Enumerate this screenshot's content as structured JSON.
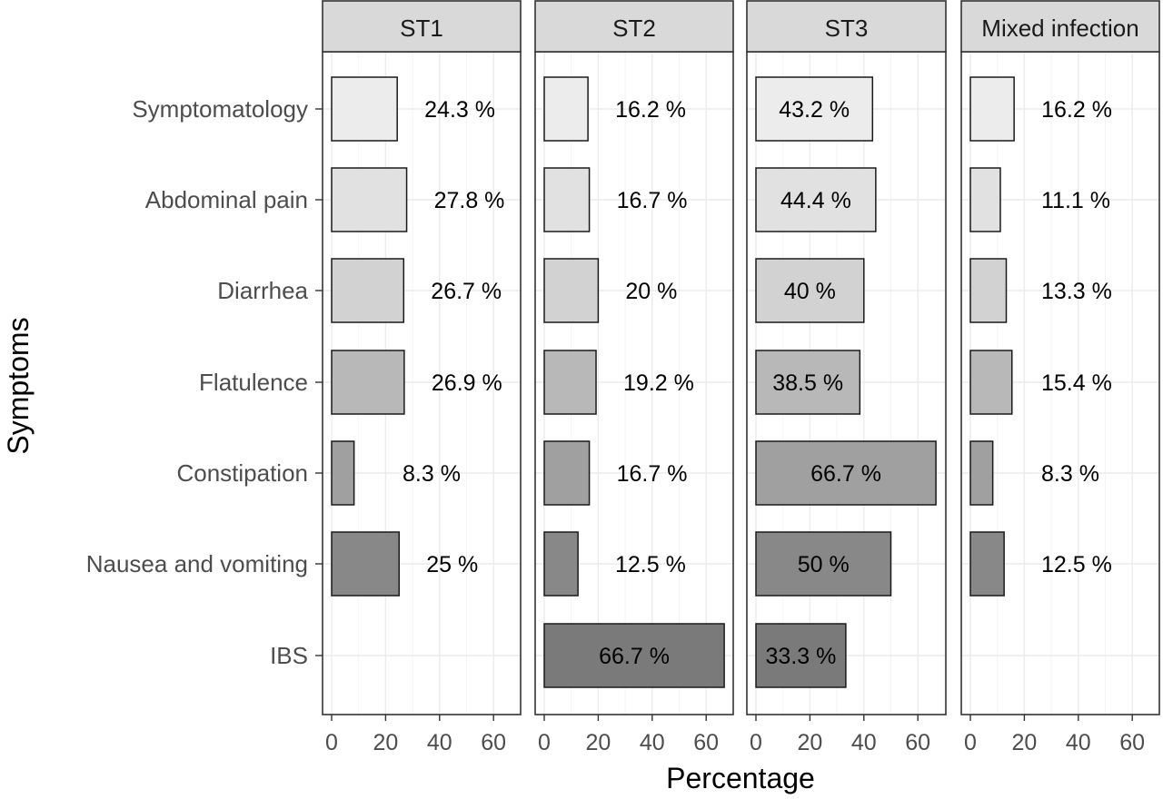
{
  "chart_data": {
    "type": "bar",
    "orientation": "horizontal",
    "xlabel": "Percentage",
    "ylabel": "Symptoms",
    "xlim": [
      0,
      70
    ],
    "xticks": [
      0,
      20,
      40,
      60
    ],
    "categories": [
      "Symptomatology",
      "Abdominal pain",
      "Diarrhea",
      "Flatulence",
      "Constipation",
      "Nausea and vomiting",
      "IBS"
    ],
    "fill_colors": [
      "#ececec",
      "#e1e1e1",
      "#d2d2d2",
      "#b8b8b8",
      "#a0a0a0",
      "#888888",
      "#7a7a7a"
    ],
    "grid": true,
    "panels": [
      {
        "name": "ST1",
        "values": [
          24.3,
          27.8,
          26.7,
          26.9,
          8.3,
          25,
          null
        ],
        "labels": [
          "24.3 %",
          "27.8 %",
          "26.7 %",
          "26.9 %",
          "8.3 %",
          "25 %",
          ""
        ]
      },
      {
        "name": "ST2",
        "values": [
          16.2,
          16.7,
          20,
          19.2,
          16.7,
          12.5,
          66.7
        ],
        "labels": [
          "16.2 %",
          "16.7 %",
          "20 %",
          "19.2 %",
          "16.7 %",
          "12.5 %",
          "66.7 %"
        ]
      },
      {
        "name": "ST3",
        "values": [
          43.2,
          44.4,
          40,
          38.5,
          66.7,
          50,
          33.3
        ],
        "labels": [
          "43.2 %",
          "44.4 %",
          "40 %",
          "38.5 %",
          "66.7 %",
          "50 %",
          "33.3 %"
        ]
      },
      {
        "name": "Mixed infection",
        "values": [
          16.2,
          11.1,
          13.3,
          15.4,
          8.3,
          12.5,
          null
        ],
        "labels": [
          "16.2 %",
          "11.1 %",
          "13.3 %",
          "15.4 %",
          "8.3 %",
          "12.5 %",
          ""
        ]
      }
    ]
  }
}
